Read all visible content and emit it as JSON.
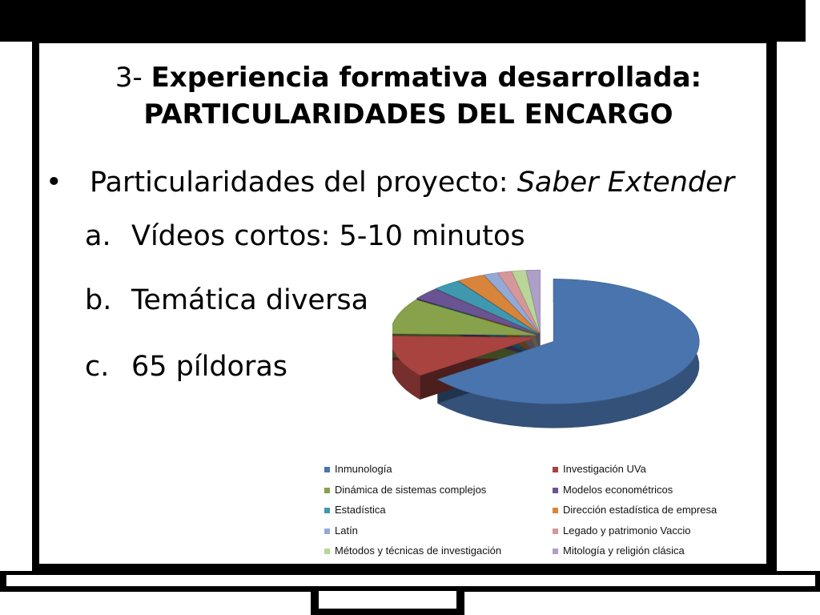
{
  "slide": {
    "title_prefix": "3- ",
    "title_bold": "Experiencia formativa desarrollada:",
    "title_line2": "PARTICULARIDADES DEL ENCARGO",
    "bullet_marker": "•",
    "bullet_text": "Particularidades del proyecto: ",
    "bullet_italic": "Saber Extender",
    "items": [
      {
        "marker": "a.",
        "text": "Vídeos cortos: 5-10 minutos"
      },
      {
        "marker": "b.",
        "text": "Temática diversa"
      },
      {
        "marker": "c.",
        "text": "65 píldoras"
      }
    ]
  },
  "chart_data": {
    "type": "pie",
    "style": "3d-exploded",
    "categories": [
      "Inmunología",
      "Investigación UVa",
      "Dinámica de sistemas complejos",
      "Modelos econométricos",
      "Estadística",
      "Dirección estadística de empresa",
      "Latín",
      "Legado y patrimonio Vaccio",
      "Métodos y técnicas de investigación",
      "Mitología y religión clásica"
    ],
    "values": [
      42,
      7,
      6,
      2,
      2,
      2,
      1,
      1,
      1,
      1
    ],
    "colors": [
      "#4a74ad",
      "#a84340",
      "#87a24b",
      "#6a5392",
      "#3f98b0",
      "#d9843b",
      "#94aad6",
      "#d6979a",
      "#b9d597",
      "#ad9fc6"
    ],
    "legend_position": "bottom"
  }
}
